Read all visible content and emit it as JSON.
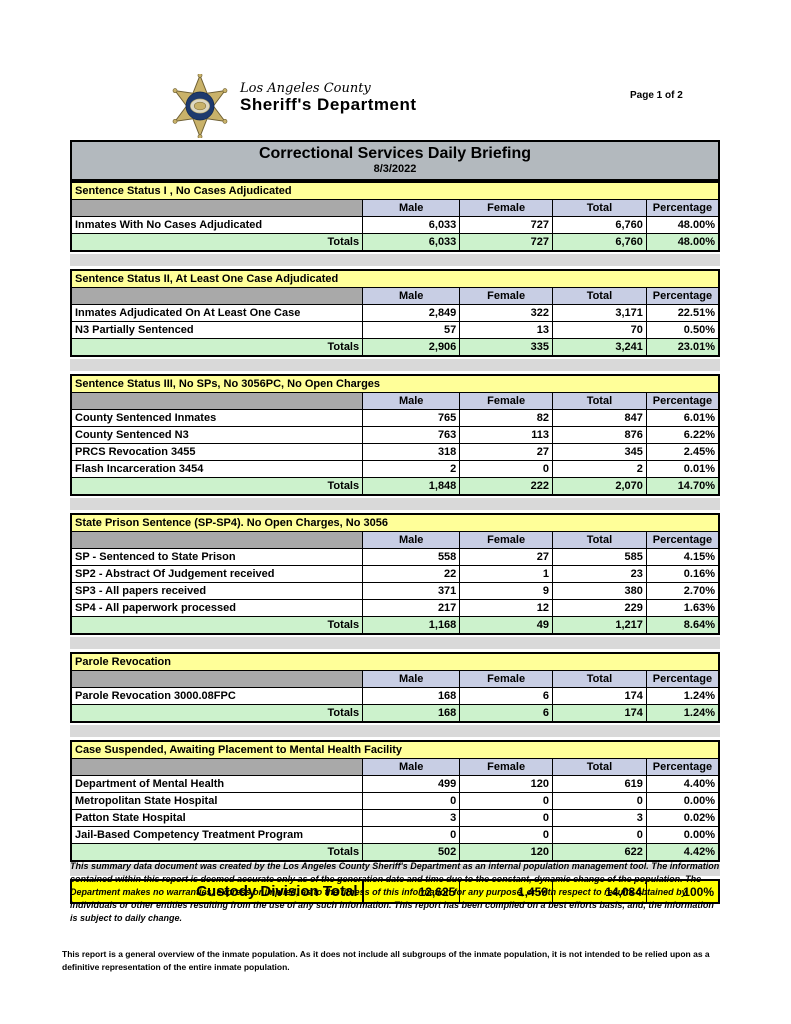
{
  "header": {
    "county": "Los Angeles County",
    "department": "Sheriff's Department",
    "page_number": "Page 1 of 2"
  },
  "title_bar": {
    "title": "Correctional Services Daily Briefing",
    "date": "8/3/2022"
  },
  "columns": [
    "Male",
    "Female",
    "Total",
    "Percentage"
  ],
  "totals_label": "Totals",
  "sections": [
    {
      "title": "Sentence Status I , No Cases Adjudicated",
      "rows": [
        [
          "Inmates With No Cases Adjudicated",
          "6,033",
          "727",
          "6,760",
          "48.00%"
        ]
      ],
      "totals": [
        "6,033",
        "727",
        "6,760",
        "48.00%"
      ]
    },
    {
      "title": "Sentence Status II, At Least One Case Adjudicated",
      "rows": [
        [
          "Inmates Adjudicated On At Least One Case",
          "2,849",
          "322",
          "3,171",
          "22.51%"
        ],
        [
          "N3 Partially Sentenced",
          "57",
          "13",
          "70",
          "0.50%"
        ]
      ],
      "totals": [
        "2,906",
        "335",
        "3,241",
        "23.01%"
      ]
    },
    {
      "title": "Sentence Status III, No SPs, No 3056PC, No Open Charges",
      "rows": [
        [
          "County Sentenced Inmates",
          "765",
          "82",
          "847",
          "6.01%"
        ],
        [
          "County Sentenced N3",
          "763",
          "113",
          "876",
          "6.22%"
        ],
        [
          "PRCS Revocation 3455",
          "318",
          "27",
          "345",
          "2.45%"
        ],
        [
          "Flash Incarceration 3454",
          "2",
          "0",
          "2",
          "0.01%"
        ]
      ],
      "totals": [
        "1,848",
        "222",
        "2,070",
        "14.70%"
      ]
    },
    {
      "title": "State Prison Sentence (SP-SP4). No Open Charges, No 3056",
      "rows": [
        [
          "SP - Sentenced to State Prison",
          "558",
          "27",
          "585",
          "4.15%"
        ],
        [
          "SP2 - Abstract Of Judgement received",
          "22",
          "1",
          "23",
          "0.16%"
        ],
        [
          "SP3 - All papers received",
          "371",
          "9",
          "380",
          "2.70%"
        ],
        [
          "SP4 - All paperwork processed",
          "217",
          "12",
          "229",
          "1.63%"
        ]
      ],
      "totals": [
        "1,168",
        "49",
        "1,217",
        "8.64%"
      ]
    },
    {
      "title": "Parole Revocation",
      "rows": [
        [
          "Parole Revocation 3000.08FPC",
          "168",
          "6",
          "174",
          "1.24%"
        ]
      ],
      "totals": [
        "168",
        "6",
        "174",
        "1.24%"
      ]
    },
    {
      "title": "Case Suspended, Awaiting Placement to Mental Health Facility",
      "rows": [
        [
          "Department of Mental Health",
          "499",
          "120",
          "619",
          "4.40%"
        ],
        [
          "Metropolitan State Hospital",
          "0",
          "0",
          "0",
          "0.00%"
        ],
        [
          "Patton State Hospital",
          "3",
          "0",
          "3",
          "0.02%"
        ],
        [
          "Jail-Based Competency Treatment Program",
          "0",
          "0",
          "0",
          "0.00%"
        ]
      ],
      "totals": [
        "502",
        "120",
        "622",
        "4.42%"
      ]
    }
  ],
  "grand_total": {
    "label": "Custody Division Total",
    "values": [
      "12,625",
      "1,459",
      "14,084",
      "100%"
    ]
  },
  "disclaimer": "This summary data document was created by the Los Angeles County Sheriff's Department as an internal population management tool.  The information contained within this report is deemed accurate only as of the generation date and time due to the constant, dynamic change of the population.  The Department makes no warranties, express or implied, as to the fitness of this information for any purpose, or with respect to results obtained by individuals or other entities resulting from the use of any such information.  This report has been compiled on a best efforts basis, and, the information is subject to daily change.",
  "footnote": "This report is a general overview of the inmate population.  As it does not include all subgroups of the inmate population, it is not intended to be relied upon as a definitive representation of the entire inmate population.",
  "colors": {
    "title_bar_bg": "#b3b9be",
    "section_header_bg": "#ffff99",
    "column_header_bg": "#c8cee4",
    "totals_row_bg": "#ccf2cc",
    "grand_total_bg": "#ffff00",
    "blank_header_bg": "#a9a9a9",
    "spacer_bg": "#d9d9d9",
    "badge_gold": "#c9b26a",
    "badge_navy": "#1e3a6e"
  }
}
